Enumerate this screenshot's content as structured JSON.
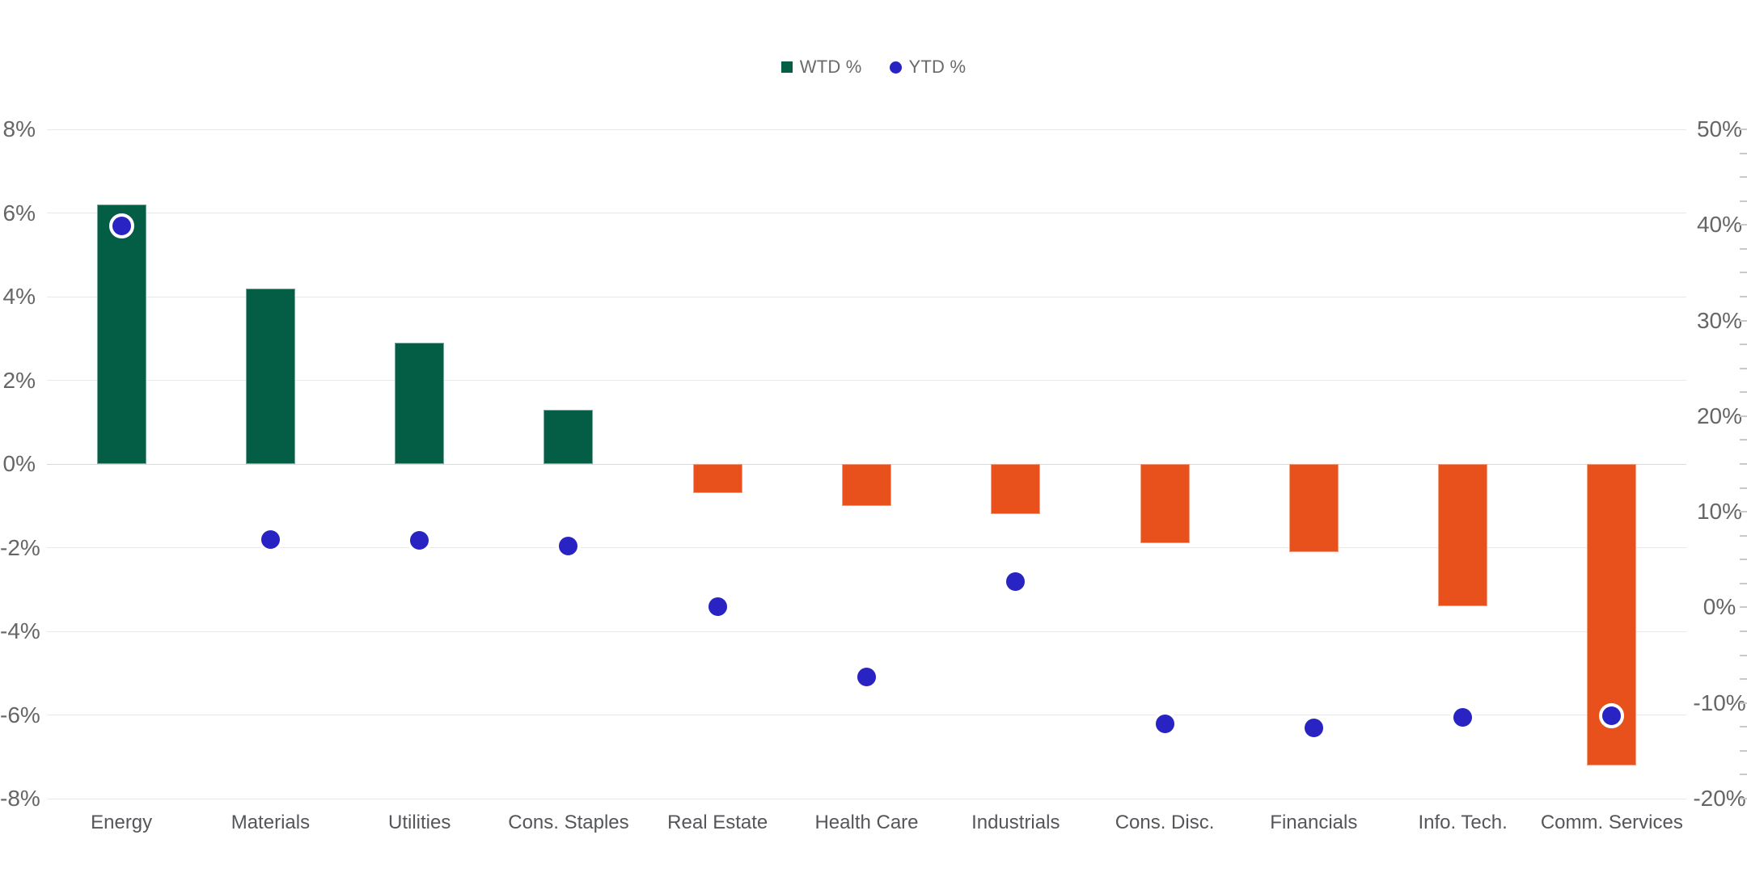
{
  "chart_data": {
    "type": "bar",
    "subtype": "combo-bar-scatter",
    "title": "",
    "categories": [
      "Energy",
      "Materials",
      "Utilities",
      "Cons. Staples",
      "Real Estate",
      "Health Care",
      "Industrials",
      "Cons. Disc.",
      "Financials",
      "Info. Tech.",
      "Comm. Services"
    ],
    "series": [
      {
        "name": "WTD %",
        "type": "bar",
        "axis": "left",
        "color_positive": "#045E45",
        "color_negative": "#E8511B",
        "values": [
          6.2,
          4.2,
          2.9,
          1.3,
          -0.7,
          -1.0,
          -1.2,
          -1.9,
          -2.1,
          -3.4,
          -7.2
        ]
      },
      {
        "name": "YTD %",
        "type": "scatter",
        "axis": "right",
        "color": "#2823C2",
        "marker_ring_color": "#FFFFFF",
        "values": [
          39.9,
          7.1,
          7.0,
          6.4,
          0.1,
          -7.3,
          2.7,
          -12.2,
          -12.6,
          -11.5,
          -11.3
        ]
      }
    ],
    "left_axis": {
      "min": -8,
      "max": 8,
      "tick_step": 2,
      "ticks": [
        8,
        6,
        4,
        2,
        0,
        -2,
        -4,
        -6,
        -8
      ],
      "tick_labels": [
        "8%",
        "6%",
        "4%",
        "2%",
        "0%",
        "-2%",
        "-4%",
        "-6%",
        "-8%"
      ]
    },
    "right_axis": {
      "min": -20,
      "max": 50,
      "tick_step": 10,
      "minor_tick_step": 2.5,
      "ticks": [
        50,
        40,
        30,
        20,
        10,
        0,
        -10,
        -20
      ],
      "tick_labels": [
        "50%",
        "40%",
        "30%",
        "20%",
        "10%",
        "0%",
        "-10%",
        "-20%"
      ]
    },
    "legend": {
      "position": "top-center",
      "items": [
        "WTD %",
        "YTD %"
      ]
    },
    "grid": {
      "horizontal": true,
      "color": "#E8E8E8",
      "zero_line_color": "#D9D9D9"
    }
  }
}
